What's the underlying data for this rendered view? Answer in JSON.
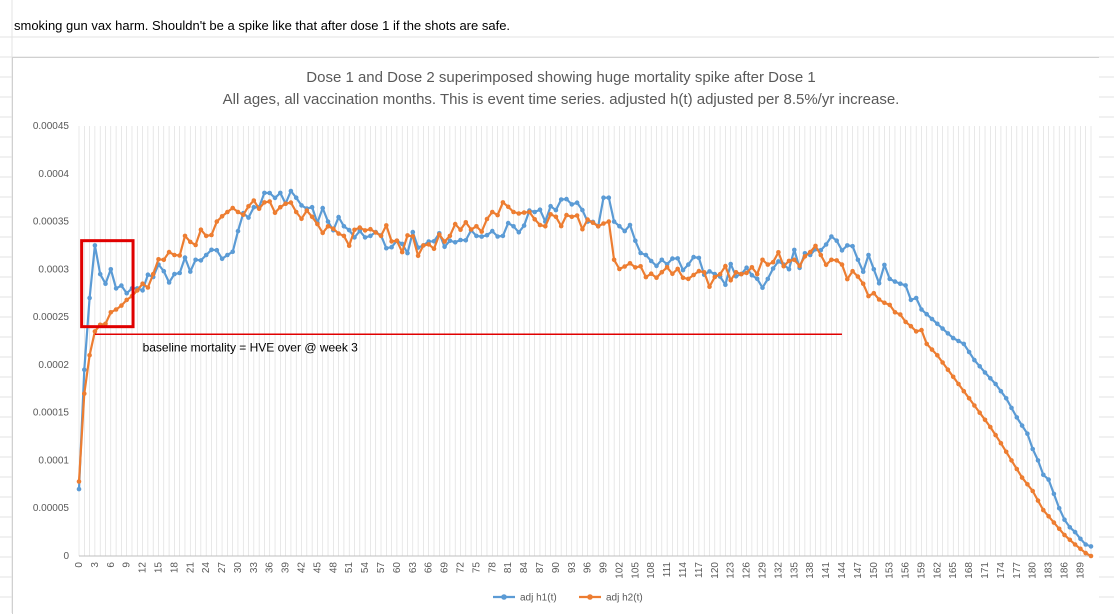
{
  "note": "smoking gun vax harm. Shouldn't be a spike like that after dose 1 if the shots are safe.",
  "colors": {
    "h1": "#5b9bd5",
    "h2": "#ed7d31",
    "highlight": "#e00000",
    "grid": "#d9d9d9"
  },
  "chart_data": {
    "type": "line",
    "title": "Dose 1 and Dose 2 superimposed showing huge mortality spike after Dose 1",
    "subtitle": "All ages, all vaccination months. This is event time series. adjusted h(t) adjusted per 8.5%/yr increase.",
    "xlabel": "",
    "ylabel": "",
    "x_range": [
      0,
      191
    ],
    "ylim": [
      0,
      0.00045
    ],
    "y_ticks": [
      "0",
      "0.00005",
      "0.0001",
      "0.00015",
      "0.0002",
      "0.00025",
      "0.0003",
      "0.00035",
      "0.0004",
      "0.00045"
    ],
    "x_tick_labels": [
      "0",
      "3",
      "6",
      "9",
      "12",
      "15",
      "18",
      "21",
      "24",
      "27",
      "30",
      "33",
      "36",
      "39",
      "42",
      "45",
      "48",
      "51",
      "54",
      "57",
      "60",
      "63",
      "66",
      "69",
      "72",
      "75",
      "78",
      "81",
      "84",
      "87",
      "90",
      "93",
      "96",
      "99",
      "102",
      "105",
      "108",
      "111",
      "114",
      "117",
      "120",
      "123",
      "126",
      "129",
      "132",
      "135",
      "138",
      "141",
      "144",
      "147",
      "150",
      "153",
      "156",
      "159",
      "162",
      "165",
      "168",
      "171",
      "174",
      "177",
      "180",
      "183",
      "186",
      "189"
    ],
    "grid": "vertical",
    "legend_position": "bottom",
    "series": [
      {
        "name": "adj h1(t)",
        "anchors": [
          [
            0,
            7e-05
          ],
          [
            1,
            0.000195
          ],
          [
            2,
            0.00027
          ],
          [
            3,
            0.000325
          ],
          [
            4,
            0.000295
          ],
          [
            5,
            0.000285
          ],
          [
            6,
            0.0003
          ],
          [
            7,
            0.00028
          ],
          [
            8,
            0.000283
          ],
          [
            9,
            0.000275
          ],
          [
            10,
            0.00028
          ],
          [
            11,
            0.00028
          ],
          [
            12,
            0.000278
          ],
          [
            14,
            0.000292
          ],
          [
            16,
            0.000298
          ],
          [
            18,
            0.000295
          ],
          [
            22,
            0.00031
          ],
          [
            26,
            0.00032
          ],
          [
            28,
            0.000315
          ],
          [
            30,
            0.00034
          ],
          [
            33,
            0.000365
          ],
          [
            35,
            0.00038
          ],
          [
            38,
            0.00038
          ],
          [
            41,
            0.000375
          ],
          [
            44,
            0.000365
          ],
          [
            47,
            0.00035
          ],
          [
            50,
            0.000345
          ],
          [
            55,
            0.000335
          ],
          [
            60,
            0.00033
          ],
          [
            65,
            0.000325
          ],
          [
            70,
            0.00033
          ],
          [
            75,
            0.000335
          ],
          [
            78,
            0.00034
          ],
          [
            82,
            0.000345
          ],
          [
            86,
            0.00036
          ],
          [
            88,
            0.00035
          ],
          [
            90,
            0.000362
          ],
          [
            93,
            0.000368
          ],
          [
            95,
            0.000362
          ],
          [
            96,
            0.00035
          ],
          [
            98,
            0.000345
          ],
          [
            99,
            0.000375
          ],
          [
            100,
            0.000375
          ],
          [
            101,
            0.00035
          ],
          [
            103,
            0.00034
          ],
          [
            105,
            0.00033
          ],
          [
            107,
            0.000315
          ],
          [
            110,
            0.00031
          ],
          [
            115,
            0.000305
          ],
          [
            120,
            0.000295
          ],
          [
            125,
            0.000295
          ],
          [
            130,
            0.00029
          ],
          [
            133,
            0.000305
          ],
          [
            138,
            0.000315
          ],
          [
            140,
            0.00032
          ],
          [
            143,
            0.00033
          ],
          [
            145,
            0.000325
          ],
          [
            147,
            0.00031
          ],
          [
            150,
            0.0003
          ],
          [
            153,
            0.00029
          ],
          [
            155,
            0.000285
          ],
          [
            157,
            0.000268
          ],
          [
            159,
            0.000258
          ],
          [
            161,
            0.000248
          ],
          [
            163,
            0.000238
          ],
          [
            165,
            0.000228
          ],
          [
            167,
            0.000222
          ],
          [
            169,
            0.000205
          ],
          [
            171,
            0.000192
          ],
          [
            173,
            0.00018
          ],
          [
            175,
            0.000165
          ],
          [
            177,
            0.000145
          ],
          [
            179,
            0.000128
          ],
          [
            180,
            0.000112
          ],
          [
            181,
            0.0001
          ],
          [
            182,
            8.5e-05
          ],
          [
            183,
            8e-05
          ],
          [
            184,
            6.5e-05
          ],
          [
            185,
            5e-05
          ],
          [
            186,
            3.8e-05
          ],
          [
            187,
            3e-05
          ],
          [
            188,
            2.5e-05
          ],
          [
            189,
            1.8e-05
          ],
          [
            190,
            1.2e-05
          ],
          [
            191,
            1e-05
          ]
        ]
      },
      {
        "name": "adj h2(t)",
        "anchors": [
          [
            0,
            7.8e-05
          ],
          [
            1,
            0.00017
          ],
          [
            2,
            0.00021
          ],
          [
            3,
            0.000235
          ],
          [
            4,
            0.000242
          ],
          [
            5,
            0.000243
          ],
          [
            6,
            0.000255
          ],
          [
            7,
            0.000258
          ],
          [
            8,
            0.000262
          ],
          [
            9,
            0.000268
          ],
          [
            10,
            0.000272
          ],
          [
            11,
            0.000278
          ],
          [
            12,
            0.000285
          ],
          [
            14,
            0.000295
          ],
          [
            16,
            0.00031
          ],
          [
            18,
            0.000315
          ],
          [
            20,
            0.000335
          ],
          [
            24,
            0.000335
          ],
          [
            26,
            0.00035
          ],
          [
            28,
            0.00036
          ],
          [
            30,
            0.00036
          ],
          [
            33,
            0.000372
          ],
          [
            35,
            0.00037
          ],
          [
            38,
            0.000365
          ],
          [
            41,
            0.00036
          ],
          [
            44,
            0.000355
          ],
          [
            47,
            0.000345
          ],
          [
            50,
            0.000335
          ],
          [
            55,
            0.000342
          ],
          [
            60,
            0.00033
          ],
          [
            65,
            0.000325
          ],
          [
            70,
            0.000335
          ],
          [
            75,
            0.000345
          ],
          [
            78,
            0.00036
          ],
          [
            80,
            0.00037
          ],
          [
            82,
            0.00036
          ],
          [
            85,
            0.00036
          ],
          [
            88,
            0.000345
          ],
          [
            90,
            0.000355
          ],
          [
            93,
            0.000355
          ],
          [
            96,
            0.000352
          ],
          [
            98,
            0.000345
          ],
          [
            99,
            0.000348
          ],
          [
            100,
            0.00035
          ],
          [
            101,
            0.00031
          ],
          [
            103,
            0.000303
          ],
          [
            105,
            0.000302
          ],
          [
            110,
            0.000297
          ],
          [
            115,
            0.00029
          ],
          [
            120,
            0.000292
          ],
          [
            125,
            0.000295
          ],
          [
            130,
            0.000305
          ],
          [
            135,
            0.00031
          ],
          [
            138,
            0.000318
          ],
          [
            140,
            0.000315
          ],
          [
            142,
            0.00031
          ],
          [
            144,
            0.000305
          ],
          [
            146,
            0.000298
          ],
          [
            148,
            0.000285
          ],
          [
            150,
            0.000275
          ],
          [
            152,
            0.000265
          ],
          [
            154,
            0.000255
          ],
          [
            156,
            0.000245
          ],
          [
            158,
            0.000235
          ],
          [
            160,
            0.000222
          ],
          [
            162,
            0.00021
          ],
          [
            164,
            0.000195
          ],
          [
            166,
            0.00018
          ],
          [
            168,
            0.000165
          ],
          [
            170,
            0.00015
          ],
          [
            172,
            0.000135
          ],
          [
            174,
            0.000118
          ],
          [
            176,
            0.0001
          ],
          [
            178,
            8.2e-05
          ],
          [
            180,
            6.8e-05
          ],
          [
            182,
            4.8e-05
          ],
          [
            184,
            3.5e-05
          ],
          [
            186,
            2.2e-05
          ],
          [
            188,
            1.2e-05
          ],
          [
            190,
            3e-06
          ],
          [
            191,
            0.0
          ]
        ]
      }
    ],
    "annotations": [
      {
        "type": "label",
        "text": "baseline mortality = HVE over @ week 3",
        "y": 0.000232
      },
      {
        "type": "line",
        "from_x": 3,
        "to_x": 144,
        "y": 0.000232
      },
      {
        "type": "box",
        "x0": 0.5,
        "x1": 10.2,
        "y0": 0.00024,
        "y1": 0.00033
      }
    ]
  }
}
